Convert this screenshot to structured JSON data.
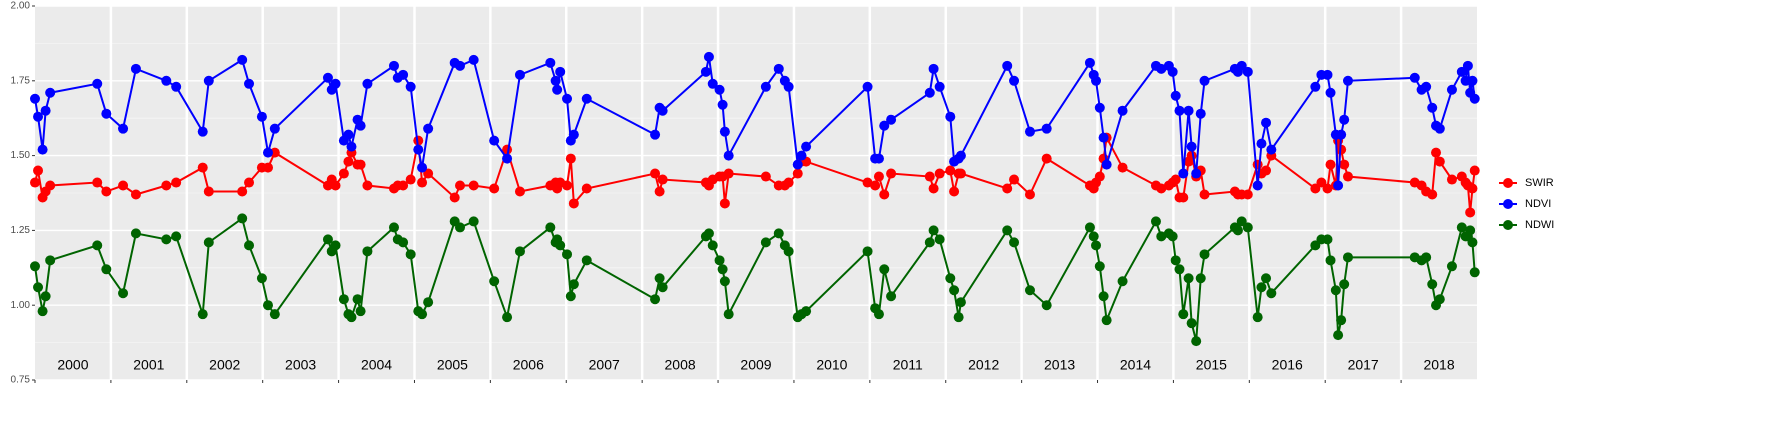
{
  "chart_data": {
    "type": "line",
    "years": [
      2000,
      2001,
      2002,
      2003,
      2004,
      2005,
      2006,
      2007,
      2008,
      2009,
      2010,
      2011,
      2012,
      2013,
      2014,
      2015,
      2016,
      2017,
      2018
    ],
    "x": [
      2000.0,
      2000.04,
      2000.1,
      2000.14,
      2000.2,
      2000.82,
      2000.94,
      2001.16,
      2001.33,
      2001.73,
      2001.86,
      2002.21,
      2002.29,
      2002.73,
      2002.82,
      2002.99,
      2003.07,
      2003.16,
      2003.86,
      2003.91,
      2003.96,
      2004.07,
      2004.13,
      2004.17,
      2004.25,
      2004.29,
      2004.38,
      2004.73,
      2004.78,
      2004.85,
      2004.95,
      2005.05,
      2005.1,
      2005.18,
      2005.53,
      2005.6,
      2005.78,
      2006.05,
      2006.22,
      2006.39,
      2006.79,
      2006.86,
      2006.88,
      2006.92,
      2007.01,
      2007.06,
      2007.1,
      2007.27,
      2008.17,
      2008.23,
      2008.27,
      2008.84,
      2008.88,
      2008.93,
      2009.02,
      2009.06,
      2009.09,
      2009.14,
      2009.63,
      2009.8,
      2009.88,
      2009.93,
      2010.05,
      2010.1,
      2010.16,
      2010.97,
      2011.07,
      2011.12,
      2011.19,
      2011.28,
      2011.79,
      2011.84,
      2011.92,
      2012.06,
      2012.11,
      2012.17,
      2012.2,
      2012.81,
      2012.9,
      2013.11,
      2013.33,
      2013.9,
      2013.95,
      2013.98,
      2014.03,
      2014.08,
      2014.12,
      2014.33,
      2014.77,
      2014.84,
      2014.94,
      2014.99,
      2015.03,
      2015.08,
      2015.13,
      2015.2,
      2015.24,
      2015.3,
      2015.36,
      2015.41,
      2015.81,
      2015.85,
      2015.9,
      2015.98,
      2016.11,
      2016.16,
      2016.22,
      2016.29,
      2016.87,
      2016.95,
      2017.03,
      2017.07,
      2017.14,
      2017.17,
      2017.21,
      2017.25,
      2017.3,
      2018.18,
      2018.27,
      2018.33,
      2018.41,
      2018.46,
      2018.51,
      2018.67,
      2018.8,
      2018.85,
      2018.88,
      2018.91,
      2018.94,
      2018.97
    ],
    "series": [
      {
        "name": "SWIR",
        "color": "#ff0000",
        "values": [
          1.41,
          1.45,
          1.36,
          1.38,
          1.4,
          1.41,
          1.38,
          1.4,
          1.37,
          1.4,
          1.41,
          1.46,
          1.38,
          1.38,
          1.41,
          1.46,
          1.46,
          1.51,
          1.4,
          1.42,
          1.4,
          1.44,
          1.48,
          1.51,
          1.47,
          1.47,
          1.4,
          1.39,
          1.4,
          1.4,
          1.42,
          1.55,
          1.41,
          1.44,
          1.36,
          1.4,
          1.4,
          1.39,
          1.52,
          1.38,
          1.4,
          1.41,
          1.39,
          1.41,
          1.4,
          1.49,
          1.34,
          1.39,
          1.44,
          1.38,
          1.42,
          1.41,
          1.4,
          1.42,
          1.43,
          1.43,
          1.34,
          1.44,
          1.43,
          1.4,
          1.4,
          1.41,
          1.44,
          1.48,
          1.48,
          1.41,
          1.4,
          1.43,
          1.37,
          1.44,
          1.43,
          1.39,
          1.44,
          1.45,
          1.38,
          1.44,
          1.44,
          1.39,
          1.42,
          1.37,
          1.49,
          1.4,
          1.39,
          1.41,
          1.43,
          1.49,
          1.56,
          1.46,
          1.4,
          1.39,
          1.4,
          1.41,
          1.42,
          1.36,
          1.36,
          1.48,
          1.5,
          1.43,
          1.45,
          1.37,
          1.38,
          1.37,
          1.37,
          1.37,
          1.47,
          1.44,
          1.45,
          1.5,
          1.39,
          1.41,
          1.39,
          1.47,
          1.4,
          1.55,
          1.52,
          1.47,
          1.43,
          1.41,
          1.4,
          1.38,
          1.37,
          1.51,
          1.48,
          1.42,
          1.43,
          1.41,
          1.4,
          1.31,
          1.39,
          1.45
        ]
      },
      {
        "name": "NDVI",
        "color": "#0000ff",
        "values": [
          1.69,
          1.63,
          1.52,
          1.65,
          1.71,
          1.74,
          1.64,
          1.59,
          1.79,
          1.75,
          1.73,
          1.58,
          1.75,
          1.82,
          1.74,
          1.63,
          1.51,
          1.59,
          1.76,
          1.72,
          1.74,
          1.55,
          1.57,
          1.53,
          1.62,
          1.6,
          1.74,
          1.8,
          1.76,
          1.77,
          1.73,
          1.52,
          1.46,
          1.59,
          1.81,
          1.8,
          1.82,
          1.55,
          1.49,
          1.77,
          1.81,
          1.75,
          1.72,
          1.78,
          1.69,
          1.55,
          1.57,
          1.69,
          1.57,
          1.66,
          1.65,
          1.78,
          1.83,
          1.74,
          1.72,
          1.67,
          1.58,
          1.5,
          1.73,
          1.79,
          1.75,
          1.73,
          1.47,
          1.5,
          1.53,
          1.73,
          1.49,
          1.49,
          1.6,
          1.62,
          1.71,
          1.79,
          1.73,
          1.63,
          1.48,
          1.49,
          1.5,
          1.8,
          1.75,
          1.58,
          1.59,
          1.81,
          1.77,
          1.75,
          1.66,
          1.56,
          1.47,
          1.65,
          1.8,
          1.79,
          1.8,
          1.78,
          1.7,
          1.65,
          1.44,
          1.65,
          1.53,
          1.44,
          1.64,
          1.75,
          1.79,
          1.78,
          1.8,
          1.78,
          1.4,
          1.54,
          1.61,
          1.52,
          1.73,
          1.77,
          1.77,
          1.71,
          1.57,
          1.4,
          1.57,
          1.62,
          1.75,
          1.76,
          1.72,
          1.73,
          1.66,
          1.6,
          1.59,
          1.72,
          1.78,
          1.75,
          1.8,
          1.71,
          1.75,
          1.69
        ]
      },
      {
        "name": "NDWI",
        "color": "#006400",
        "values": [
          1.13,
          1.06,
          0.98,
          1.03,
          1.15,
          1.2,
          1.12,
          1.04,
          1.24,
          1.22,
          1.23,
          0.97,
          1.21,
          1.29,
          1.2,
          1.09,
          1.0,
          0.97,
          1.22,
          1.18,
          1.2,
          1.02,
          0.97,
          0.96,
          1.02,
          0.98,
          1.18,
          1.26,
          1.22,
          1.21,
          1.17,
          0.98,
          0.97,
          1.01,
          1.28,
          1.26,
          1.28,
          1.08,
          0.96,
          1.18,
          1.26,
          1.21,
          1.22,
          1.2,
          1.17,
          1.03,
          1.07,
          1.15,
          1.02,
          1.09,
          1.06,
          1.23,
          1.24,
          1.2,
          1.15,
          1.12,
          1.08,
          0.97,
          1.21,
          1.24,
          1.2,
          1.18,
          0.96,
          0.97,
          0.98,
          1.18,
          0.99,
          0.97,
          1.12,
          1.03,
          1.21,
          1.25,
          1.22,
          1.09,
          1.05,
          0.96,
          1.01,
          1.25,
          1.21,
          1.05,
          1.0,
          1.26,
          1.23,
          1.2,
          1.13,
          1.03,
          0.95,
          1.08,
          1.28,
          1.23,
          1.24,
          1.23,
          1.15,
          1.12,
          0.97,
          1.09,
          0.94,
          0.88,
          1.09,
          1.17,
          1.26,
          1.25,
          1.28,
          1.26,
          0.96,
          1.06,
          1.09,
          1.04,
          1.2,
          1.22,
          1.22,
          1.15,
          1.05,
          0.9,
          0.95,
          1.07,
          1.16,
          1.16,
          1.15,
          1.16,
          1.07,
          1.0,
          1.02,
          1.13,
          1.26,
          1.23,
          1.23,
          1.25,
          1.21,
          1.11
        ]
      }
    ],
    "xlim": [
      2000,
      2019
    ],
    "ylim": [
      0.75,
      2.0
    ],
    "yticks": [
      0.75,
      {
        "value": 1.0,
        "label": "1.00"
      },
      {
        "value": 1.25,
        "label": "1.25"
      },
      {
        "value": 1.5,
        "label": "1.50"
      },
      {
        "value": 1.75,
        "label": "1.75"
      },
      {
        "value": 2.0,
        "label": "2.00"
      }
    ],
    "grid": true
  }
}
